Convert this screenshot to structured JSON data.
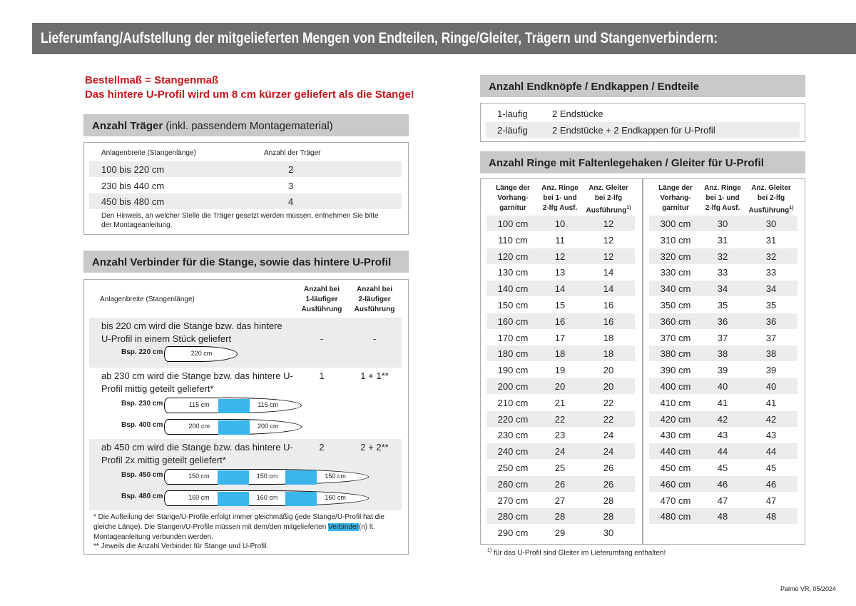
{
  "header": {
    "title": "Lieferumfang/Aufstellung der mitgelieferten Mengen von Endteilen, Ringe/Gleiter, Trägern und Stangenverbindern:"
  },
  "notice": [
    "Bestellmaß = Stangenmaß",
    "Das hintere U-Profil wird um 8 cm kürzer geliefert als die Stange!"
  ],
  "traeger": {
    "title": "Anzahl Träger",
    "title_suffix": "(inkl. passendem Montagematerial)",
    "columns": [
      "Anlagenbreite (Stangenlänge)",
      "Anzahl der Träger"
    ],
    "rows": [
      [
        "100 bis 220 cm",
        2
      ],
      [
        "230 bis 440 cm",
        3
      ],
      [
        "450 bis 480 cm",
        4
      ]
    ],
    "note": "Den Hinweis, an welcher Stelle die Träger gesetzt werden müssen, entnehmen Sie bitte der Montageanleitung."
  },
  "verbinder": {
    "title": "Anzahl Verbinder für die Stange, sowie das hintere U-Profil",
    "columns": [
      "Anlagenbreite (Stangenlänge)",
      "Anzahl bei\n1-läufiger\nAusführung",
      "Anzahl bei\n2-läufiger\nAusführung"
    ],
    "rows": [
      {
        "text": "bis 220 cm wird die Stange bzw. das hintere U-Profil in einem Stück geliefert",
        "one": "-",
        "two": "-",
        "examples": [
          {
            "label": "Bsp. 220 cm",
            "parts": [
              "220 cm"
            ]
          }
        ]
      },
      {
        "text": "ab 230 cm wird die Stange bzw. das hintere U-Profil mittig geteilt geliefert*",
        "one": "1",
        "two": "1 + 1**",
        "examples": [
          {
            "label": "Bsp. 230 cm",
            "parts": [
              "115 cm",
              "115 cm"
            ]
          },
          {
            "label": "Bsp. 400 cm",
            "parts": [
              "200 cm",
              "200 cm"
            ]
          }
        ]
      },
      {
        "text": "ab 450 cm wird die Stange bzw. das hintere U-Profil 2x mittig geteilt geliefert*",
        "one": "2",
        "two": "2 + 2**",
        "examples": [
          {
            "label": "Bsp. 450 cm",
            "parts": [
              "150 cm",
              "150 cm",
              "150 cm"
            ]
          },
          {
            "label": "Bsp. 480 cm",
            "parts": [
              "160 cm",
              "160 cm",
              "160 cm"
            ]
          }
        ]
      }
    ],
    "footnote1": {
      "before": "* Die Aufteilung der Stange/U-Profile erfolgt immer gleichmäßig (jede Stange/U-Profil hat die gleiche Länge). Die Stangen/U-Profile müssen mit dem/den mitgelieferten ",
      "highlight": "Verbinder",
      "after": "(n) lt. Montageanleitung verbunden werden."
    },
    "footnote2": "** Jeweils die Anzahl Verbinder für Stange und U-Profil."
  },
  "endteile": {
    "title": "Anzahl Endknöpfe / Endkappen / Endteile",
    "rows": [
      [
        "1-läufig",
        "2 Endstücke"
      ],
      [
        "2-läufig",
        "2 Endstücke + 2 Endkappen für U-Profil"
      ]
    ]
  },
  "ringe": {
    "title": "Anzahl Ringe mit Faltenlegehaken / Gleiter für U-Profil",
    "columns": [
      "Länge der\nVorhang-\ngarnitur",
      "Anz. Ringe\nbei 1- und\n2-lfg Ausf.",
      "Anz. Gleiter\nbei 2-lfg\nAusführung"
    ],
    "sup": "1)",
    "left": [
      [
        "100 cm",
        10,
        12
      ],
      [
        "110 cm",
        11,
        12
      ],
      [
        "120 cm",
        12,
        12
      ],
      [
        "130 cm",
        13,
        14
      ],
      [
        "140 cm",
        14,
        14
      ],
      [
        "150 cm",
        15,
        16
      ],
      [
        "160 cm",
        16,
        16
      ],
      [
        "170 cm",
        17,
        18
      ],
      [
        "180 cm",
        18,
        18
      ],
      [
        "190 cm",
        19,
        20
      ],
      [
        "200 cm",
        20,
        20
      ],
      [
        "210 cm",
        21,
        22
      ],
      [
        "220 cm",
        22,
        22
      ],
      [
        "230 cm",
        23,
        24
      ],
      [
        "240 cm",
        24,
        24
      ],
      [
        "250 cm",
        25,
        26
      ],
      [
        "260 cm",
        26,
        26
      ],
      [
        "270 cm",
        27,
        28
      ],
      [
        "280 cm",
        28,
        28
      ],
      [
        "290 cm",
        29,
        30
      ]
    ],
    "right": [
      [
        "300 cm",
        30,
        30
      ],
      [
        "310 cm",
        31,
        31
      ],
      [
        "320 cm",
        32,
        32
      ],
      [
        "330 cm",
        33,
        33
      ],
      [
        "340 cm",
        34,
        34
      ],
      [
        "350 cm",
        35,
        35
      ],
      [
        "360 cm",
        36,
        36
      ],
      [
        "370 cm",
        37,
        37
      ],
      [
        "380 cm",
        38,
        38
      ],
      [
        "390 cm",
        39,
        39
      ],
      [
        "400 cm",
        40,
        40
      ],
      [
        "410 cm",
        41,
        41
      ],
      [
        "420 cm",
        42,
        42
      ],
      [
        "430 cm",
        43,
        43
      ],
      [
        "440 cm",
        44,
        44
      ],
      [
        "450 cm",
        45,
        45
      ],
      [
        "460 cm",
        46,
        46
      ],
      [
        "470 cm",
        47,
        47
      ],
      [
        "480 cm",
        48,
        48
      ]
    ],
    "footnote_sup": "1)",
    "footnote": "für das U-Profil sind Gleiter im Lieferumfang enthalten!"
  },
  "footer": "Palmo VR, 05/2024"
}
